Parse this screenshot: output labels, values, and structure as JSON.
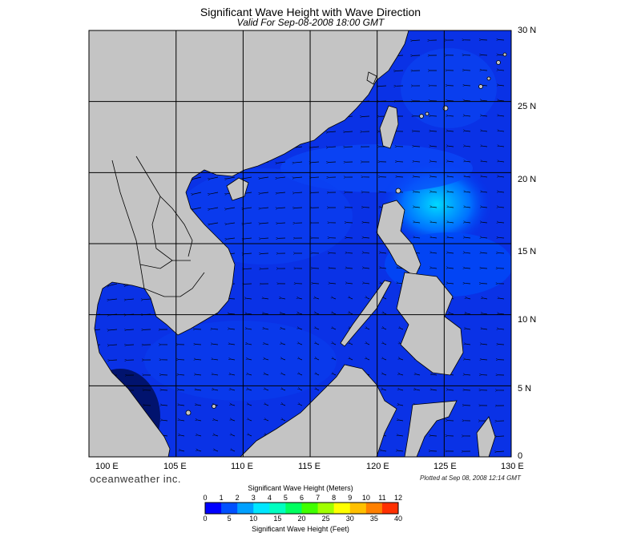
{
  "title": "Significant Wave Height with Wave Direction",
  "subtitle": "Valid For Sep-08-2008 18:00 GMT",
  "map": {
    "lon_range": [
      98.5,
      130
    ],
    "lat_range": [
      0,
      30
    ],
    "grid_lines_lon": [
      105,
      110,
      115,
      120,
      125
    ],
    "grid_lines_lat": [
      5,
      10,
      15,
      20,
      25
    ],
    "lat_labels": [
      "30 N",
      "25 N",
      "20 N",
      "15 N",
      "10 N",
      "5 N",
      "0"
    ],
    "lon_labels": [
      "100 E",
      "105 E",
      "110 E",
      "115 E",
      "120 E",
      "125 E",
      "130 E"
    ],
    "land_color": "#c4c4c4",
    "grid_color": "#000000"
  },
  "branding": "oceanweather inc.",
  "plotted": "Plotted at Sep 08, 2008 12:14 GMT",
  "colorbar": {
    "title_meters": "Significant Wave Height (Meters)",
    "title_feet": "Significant Wave Height (Feet)",
    "meter_ticks": [
      "0",
      "1",
      "2",
      "3",
      "4",
      "5",
      "6",
      "7",
      "8",
      "9",
      "10",
      "11",
      "12"
    ],
    "feet_ticks": [
      "0",
      "5",
      "10",
      "15",
      "20",
      "25",
      "30",
      "35",
      "40"
    ],
    "colors": [
      "#0000ff",
      "#0050ff",
      "#00a0ff",
      "#00e6ff",
      "#00ffc0",
      "#00ff60",
      "#40ff00",
      "#a0ff00",
      "#ffff00",
      "#ffc000",
      "#ff8000",
      "#ff3000"
    ]
  }
}
